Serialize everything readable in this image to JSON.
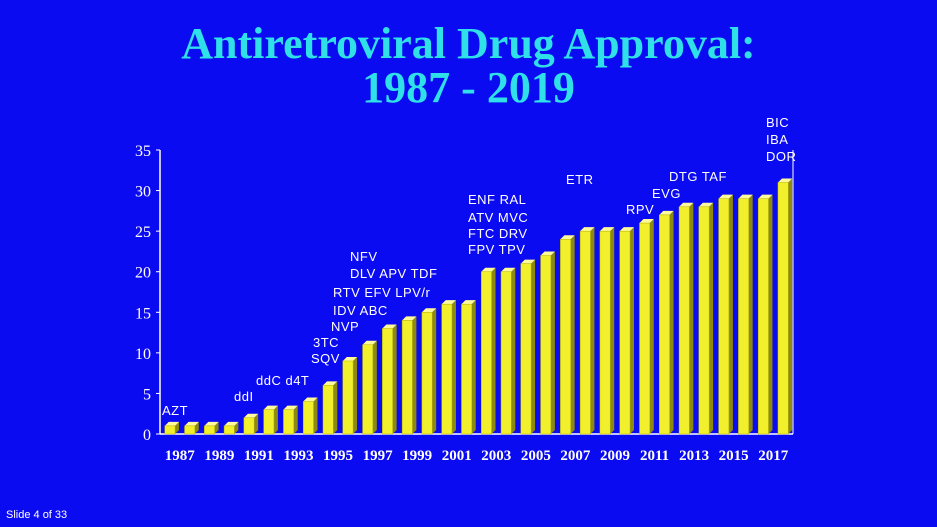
{
  "slide": {
    "title_line1": "Antiretroviral Drug Approval:",
    "title_line2": "1987 - 2019",
    "footer": "Slide 4 of 33"
  },
  "colors": {
    "background": "#0b0bf2",
    "title": "#2fe0e8",
    "bar_front": "#f2f02c",
    "bar_side": "#8c8a10",
    "bar_top": "#fffb9a",
    "axis": "#ffffff"
  },
  "chart_data": {
    "type": "bar",
    "title": "Antiretroviral Drug Approval: 1987 - 2019",
    "xlabel": "",
    "ylabel": "",
    "ylim": [
      0,
      35
    ],
    "yticks": [
      "0",
      "5",
      "10",
      "15",
      "20",
      "25",
      "30",
      "35"
    ],
    "xtick_labels": [
      "1987",
      "1989",
      "1991",
      "1993",
      "1995",
      "1997",
      "1999",
      "2001",
      "2003",
      "2005",
      "2007",
      "2009",
      "2011",
      "2013",
      "2015",
      "2017"
    ],
    "categories": [
      "1987",
      "1988",
      "1989",
      "1990",
      "1991",
      "1992",
      "1993",
      "1994",
      "1995",
      "1996",
      "1997",
      "1998",
      "1999",
      "2000",
      "2001",
      "2002",
      "2003",
      "2004",
      "2005",
      "2006",
      "2007",
      "2008",
      "2009",
      "2010",
      "2011",
      "2012",
      "2013",
      "2014",
      "2015",
      "2016",
      "2017",
      "2018"
    ],
    "values": [
      1,
      1,
      1,
      1,
      2,
      3,
      3,
      4,
      6,
      9,
      11,
      13,
      14,
      15,
      16,
      16,
      20,
      20,
      21,
      22,
      24,
      25,
      25,
      25,
      26,
      27,
      28,
      28,
      29,
      29,
      29,
      31
    ],
    "annotations": [
      {
        "text": "AZT",
        "at": "1987"
      },
      {
        "text": "ddI",
        "at": "1991"
      },
      {
        "text": "ddC  d4T",
        "at": "1993"
      },
      {
        "text": "SQV",
        "at": "1995"
      },
      {
        "text": "3TC",
        "at": "1995"
      },
      {
        "text": "NVP",
        "at": "1996"
      },
      {
        "text": "IDV   ABC",
        "at": "1996"
      },
      {
        "text": "RTV   EFV LPV/r",
        "at": "1997"
      },
      {
        "text": "DLV   APV  TDF",
        "at": "1997"
      },
      {
        "text": "NFV",
        "at": "1997"
      },
      {
        "text": "FPV   TPV",
        "at": "2003"
      },
      {
        "text": "FTC      DRV",
        "at": "2003"
      },
      {
        "text": "ATV         MVC",
        "at": "2003"
      },
      {
        "text": "ENF          RAL",
        "at": "2003"
      },
      {
        "text": "ETR",
        "at": "2008"
      },
      {
        "text": "RPV",
        "at": "2011"
      },
      {
        "text": "EVG",
        "at": "2012"
      },
      {
        "text": "DTG   TAF",
        "at": "2013"
      },
      {
        "text": "DOR",
        "at": "2018"
      },
      {
        "text": "IBA",
        "at": "2018"
      },
      {
        "text": "BIC",
        "at": "2018"
      }
    ]
  }
}
